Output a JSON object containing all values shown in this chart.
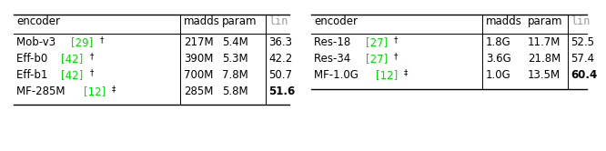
{
  "left_table": {
    "rows": [
      {
        "enc_black": "Mob-v3 ",
        "ref": "[29]",
        "sup": "†",
        "madds": "217M",
        "param": "5.4M",
        "lin": "36.3",
        "bold_lin": false
      },
      {
        "enc_black": "Eff-b0 ",
        "ref": "[42]",
        "sup": "†",
        "madds": "390M",
        "param": "5.3M",
        "lin": "42.2",
        "bold_lin": false
      },
      {
        "enc_black": "Eff-b1 ",
        "ref": "[42]",
        "sup": "†",
        "madds": "700M",
        "param": "7.8M",
        "lin": "50.7",
        "bold_lin": false
      },
      {
        "enc_black": "MF-285M ",
        "ref": "[12]",
        "sup": "‡",
        "madds": "285M",
        "param": "5.8M",
        "lin": "51.6",
        "bold_lin": true
      }
    ]
  },
  "right_table": {
    "rows": [
      {
        "enc_black": "Res-18 ",
        "ref": "[27]",
        "sup": "†",
        "madds": "1.8G",
        "param": "11.7M",
        "lin": "52.5",
        "bold_lin": false
      },
      {
        "enc_black": "Res-34 ",
        "ref": "[27]",
        "sup": "†",
        "madds": "3.6G",
        "param": "21.8M",
        "lin": "57.4",
        "bold_lin": false
      },
      {
        "enc_black": "MF-1.0G ",
        "ref": "[12]",
        "sup": "‡",
        "madds": "1.0G",
        "param": "13.5M",
        "lin": "60.4",
        "bold_lin": true
      }
    ]
  },
  "green_color": "#00dd00",
  "black_color": "#000000",
  "gray_color": "#999999",
  "bg_color": "#ffffff",
  "font_size": 8.5
}
